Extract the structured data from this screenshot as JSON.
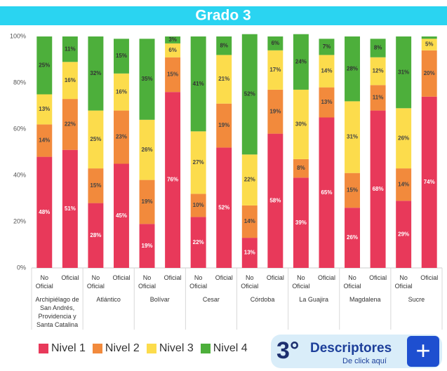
{
  "chart_data": {
    "type": "stacked_bar",
    "title": "Grado 3",
    "categories": [
      "No Oficial",
      "Oficial",
      "No Oficial",
      "Oficial",
      "No Oficial",
      "Oficial",
      "No Oficial",
      "Oficial",
      "No Oficial",
      "Oficial",
      "No Oficial",
      "Oficial",
      "No Oficial",
      "Oficial",
      "No Oficial",
      "Oficial"
    ],
    "groups": [
      "Archipiélago de San Andrés, Providencia y Santa Catalina",
      "Atlántico",
      "Bolívar",
      "Cesar",
      "Córdoba",
      "La Guajira",
      "Magdalena",
      "Sucre"
    ],
    "series": [
      {
        "name": "Nivel 1",
        "color": "#e8395a",
        "label_color": "#ffffff",
        "values": [
          48,
          51,
          28,
          45,
          19,
          76,
          22,
          52,
          13,
          58,
          39,
          65,
          26,
          68,
          29,
          74
        ],
        "value_labels": [
          "48%",
          "51%",
          "28%",
          "45%",
          "19%",
          "76%",
          "22%",
          "52%",
          "13%",
          "58%",
          "39%",
          "65%",
          "26%",
          "68%",
          "29%",
          "74%"
        ]
      },
      {
        "name": "Nivel 2",
        "color": "#f28a3c",
        "label_color": "#444444",
        "values": [
          14,
          22,
          15,
          23,
          19,
          15,
          10,
          19,
          14,
          19,
          8,
          13,
          15,
          11,
          14,
          20
        ],
        "value_labels": [
          "14%",
          "22%",
          "15%",
          "23%",
          "19%",
          "15%",
          "10%",
          "19%",
          "14%",
          "19%",
          "8%",
          "13%",
          "15%",
          "11%",
          "14%",
          "20%"
        ]
      },
      {
        "name": "Nivel 3",
        "color": "#fcdc4c",
        "label_color": "#444444",
        "values": [
          13,
          16,
          25,
          16,
          26,
          6,
          27,
          21,
          22,
          17,
          30,
          14,
          31,
          12,
          26,
          5
        ],
        "value_labels": [
          "13%",
          "16%",
          "25%",
          "16%",
          "26%",
          "6%",
          "27%",
          "21%",
          "22%",
          "17%",
          "30%",
          "14%",
          "31%",
          "12%",
          "26%",
          "5%"
        ]
      },
      {
        "name": "Nivel 4",
        "color": "#4daf3b",
        "label_color": "#333333",
        "values": [
          25,
          11,
          32,
          15,
          35,
          3,
          41,
          8,
          52,
          6,
          24,
          7,
          28,
          8,
          31,
          1
        ],
        "value_labels": [
          "25%",
          "11%",
          "32%",
          "15%",
          "35%",
          "3%",
          "41%",
          "8%",
          "52%",
          "6%",
          "24%",
          "7%",
          "28%",
          "8%",
          "31%",
          null
        ]
      }
    ],
    "ylim": [
      0,
      100
    ],
    "yticks": [
      {
        "value": 0,
        "label": "0%"
      },
      {
        "value": 20,
        "label": "20%"
      },
      {
        "value": 40,
        "label": "40%"
      },
      {
        "value": 60,
        "label": "60%"
      },
      {
        "value": 80,
        "label": "80%"
      },
      {
        "value": 100,
        "label": "100%"
      }
    ],
    "grid": false
  },
  "button": {
    "number": "3°",
    "title": "Descriptores",
    "subtitle": "De click aquí"
  }
}
